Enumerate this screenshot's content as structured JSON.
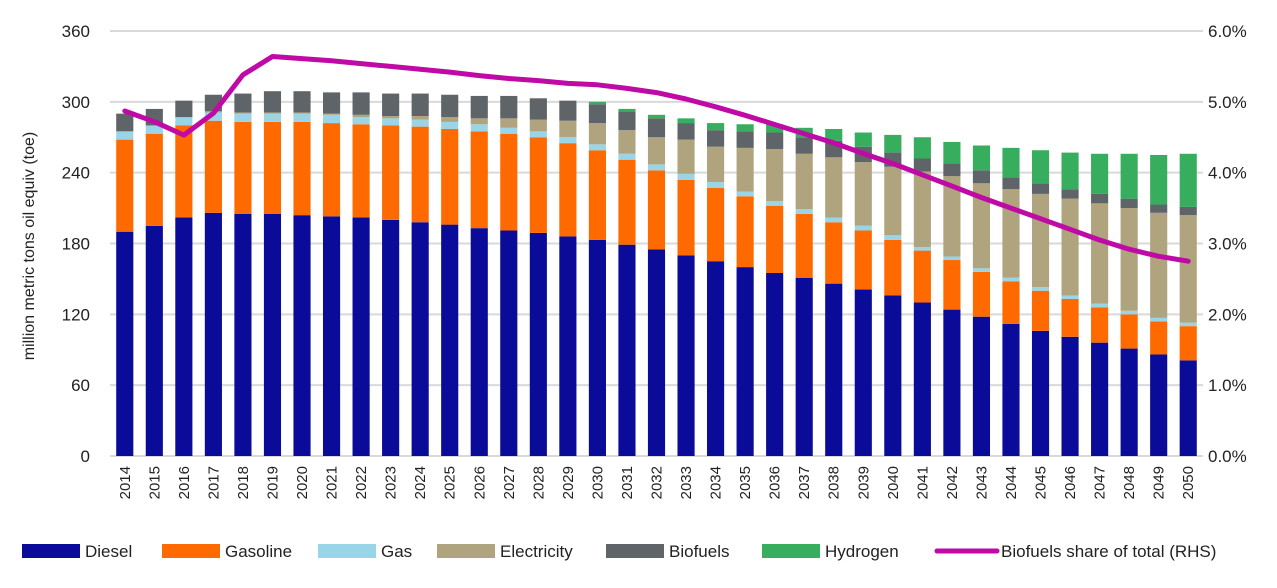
{
  "chart_data": {
    "type": "bar",
    "stacked": true,
    "title": "",
    "ylabel": "million metric tons oil equiv (toe)",
    "y2label": "",
    "ylim": [
      0,
      360
    ],
    "yticks": [
      0,
      60,
      120,
      180,
      240,
      300,
      360
    ],
    "y2lim": [
      0,
      6
    ],
    "y2ticks": [
      "0.0%",
      "1.0%",
      "2.0%",
      "3.0%",
      "4.0%",
      "5.0%",
      "6.0%"
    ],
    "grid": true,
    "legend_position": "bottom",
    "categories": [
      "2014",
      "2015",
      "2016",
      "2017",
      "2018",
      "2019",
      "2020",
      "2021",
      "2022",
      "2023",
      "2024",
      "2025",
      "2026",
      "2027",
      "2028",
      "2029",
      "2030",
      "2031",
      "2032",
      "2033",
      "2034",
      "2035",
      "2036",
      "2037",
      "2038",
      "2039",
      "2040",
      "2041",
      "2042",
      "2043",
      "2044",
      "2045",
      "2046",
      "2047",
      "2048",
      "2049",
      "2050"
    ],
    "series": [
      {
        "name": "Diesel",
        "color": "#0b0b99",
        "values": [
          190,
          195,
          202,
          206,
          205,
          205,
          204,
          203,
          202,
          200,
          198,
          196,
          193,
          191,
          189,
          186,
          183,
          179,
          175,
          170,
          165,
          160,
          155,
          151,
          146,
          141,
          136,
          130,
          124,
          118,
          112,
          106,
          101,
          96,
          91,
          86,
          81
        ]
      },
      {
        "name": "Gasoline",
        "color": "#ff6a00",
        "values": [
          78,
          78,
          78,
          78,
          78,
          78,
          79,
          79,
          79,
          80,
          81,
          81,
          82,
          82,
          81,
          79,
          76,
          72,
          67,
          64,
          62,
          60,
          57,
          54,
          52,
          50,
          47,
          44,
          42,
          38,
          36,
          34,
          32,
          30,
          29,
          28,
          29
        ]
      },
      {
        "name": "Gas",
        "color": "#99d5e6",
        "values": [
          7,
          7,
          7,
          7,
          7,
          7,
          7,
          7,
          6,
          6,
          6,
          6,
          6,
          5,
          5,
          5,
          5,
          5,
          5,
          5,
          5,
          4,
          4,
          4,
          4,
          4,
          4,
          3,
          3,
          3,
          3,
          3,
          3,
          3,
          3,
          3,
          3
        ]
      },
      {
        "name": "Electricity",
        "color": "#b0a47e",
        "values": [
          0,
          0,
          0,
          1,
          1,
          1,
          1,
          1,
          2,
          2,
          3,
          4,
          5,
          8,
          10,
          14,
          18,
          20,
          23,
          29,
          30,
          37,
          44,
          47,
          51,
          54,
          58,
          64,
          68,
          72,
          75,
          79,
          82,
          85,
          87,
          89,
          91
        ]
      },
      {
        "name": "Biofuels",
        "color": "#5f6468",
        "values": [
          15,
          14,
          14,
          14,
          16,
          18,
          18,
          18,
          19,
          19,
          19,
          19,
          19,
          19,
          18,
          17,
          16,
          16,
          16,
          14,
          14,
          14,
          14,
          14,
          14,
          13,
          12,
          11,
          11,
          11,
          10,
          9,
          8,
          8,
          8,
          7,
          7
        ]
      },
      {
        "name": "Hydrogen",
        "color": "#37ae5e",
        "values": [
          0,
          0,
          0,
          0,
          0,
          0,
          0,
          0,
          0,
          0,
          0,
          0,
          0,
          0,
          0,
          0,
          2,
          2,
          3,
          4,
          6,
          6,
          7,
          8,
          10,
          12,
          15,
          18,
          18,
          21,
          25,
          28,
          31,
          34,
          38,
          42,
          45
        ]
      }
    ],
    "line_series": {
      "name": "Biofuels share of total (RHS)",
      "color": "#bf0aa6",
      "axis": "right",
      "values": [
        4.87,
        4.72,
        4.53,
        4.84,
        5.38,
        5.64,
        5.61,
        5.58,
        5.54,
        5.5,
        5.46,
        5.42,
        5.37,
        5.33,
        5.3,
        5.26,
        5.24,
        5.19,
        5.13,
        5.04,
        4.93,
        4.81,
        4.68,
        4.55,
        4.42,
        4.27,
        4.13,
        3.97,
        3.81,
        3.65,
        3.5,
        3.35,
        3.2,
        3.05,
        2.92,
        2.82,
        2.75
      ]
    }
  }
}
